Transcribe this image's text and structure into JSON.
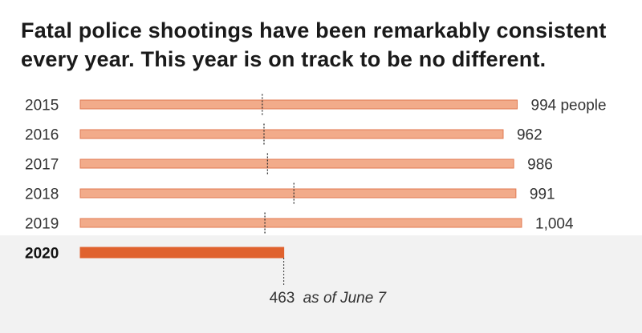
{
  "title": "Fatal police shootings have been remarkably consistent every year. This year is on track to be no different.",
  "colors": {
    "bar_fill": "#f2ab8a",
    "bar_stroke": "#e07a52",
    "highlight_fill": "#e0622e",
    "band": "#f2f2f2",
    "marker": "#333333"
  },
  "chart_data": {
    "type": "bar",
    "orientation": "horizontal",
    "categories": [
      "2015",
      "2016",
      "2017",
      "2018",
      "2019",
      "2020"
    ],
    "values": [
      994,
      962,
      986,
      991,
      1004,
      463
    ],
    "value_labels": [
      "994 people",
      "962",
      "986",
      "991",
      "1,004",
      ""
    ],
    "markers": [
      414,
      418,
      426,
      486,
      420,
      463
    ],
    "highlight": "2020",
    "annotation": {
      "value": "463",
      "text": "as of June 7"
    },
    "xlim": [
      0,
      1004
    ],
    "grid": false,
    "legend": "none"
  }
}
